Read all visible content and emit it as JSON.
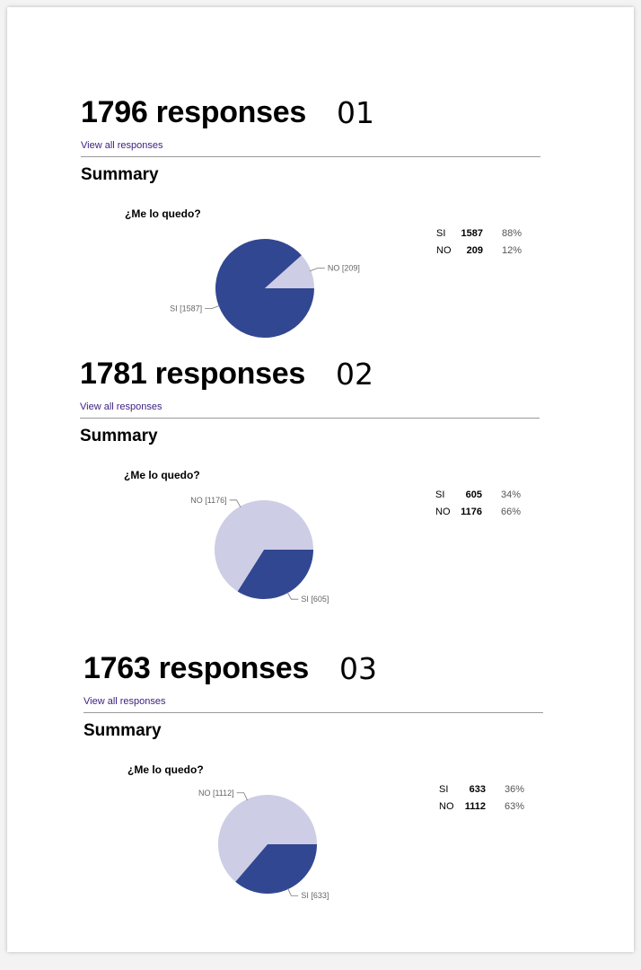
{
  "sections": [
    {
      "count_label": "1796 responses",
      "number_tag": "01",
      "view_all": "View all responses",
      "summary": "Summary",
      "question": "¿Me lo quedo?",
      "rows": [
        {
          "label": "SI",
          "value": "1587",
          "pct": "88%"
        },
        {
          "label": "NO",
          "value": "209",
          "pct": "12%"
        }
      ]
    },
    {
      "count_label": "1781 responses",
      "number_tag": "02",
      "view_all": "View all responses",
      "summary": "Summary",
      "question": "¿Me lo quedo?",
      "rows": [
        {
          "label": "SI",
          "value": "605",
          "pct": "34%"
        },
        {
          "label": "NO",
          "value": "1176",
          "pct": "66%"
        }
      ]
    },
    {
      "count_label": "1763 responses",
      "number_tag": "03",
      "view_all": "View all responses",
      "summary": "Summary",
      "question": "¿Me lo quedo?",
      "rows": [
        {
          "label": "SI",
          "value": "633",
          "pct": "36%"
        },
        {
          "label": "NO",
          "value": "1112",
          "pct": "63%"
        }
      ]
    }
  ],
  "colors": {
    "si": "#324792",
    "no": "#cdcde5",
    "link": "#3b1f80"
  },
  "chart_data": [
    {
      "type": "pie",
      "title": "¿Me lo quedo?",
      "categories": [
        "SI",
        "NO"
      ],
      "values": [
        1587,
        209
      ],
      "slice_labels": [
        "SI [1587]",
        "NO [209]"
      ]
    },
    {
      "type": "pie",
      "title": "¿Me lo quedo?",
      "categories": [
        "SI",
        "NO"
      ],
      "values": [
        605,
        1176
      ],
      "slice_labels": [
        "SI [605]",
        "NO [1176]"
      ]
    },
    {
      "type": "pie",
      "title": "¿Me lo quedo?",
      "categories": [
        "SI",
        "NO"
      ],
      "values": [
        633,
        1112
      ],
      "slice_labels": [
        "SI [633]",
        "NO [1112]"
      ]
    }
  ]
}
